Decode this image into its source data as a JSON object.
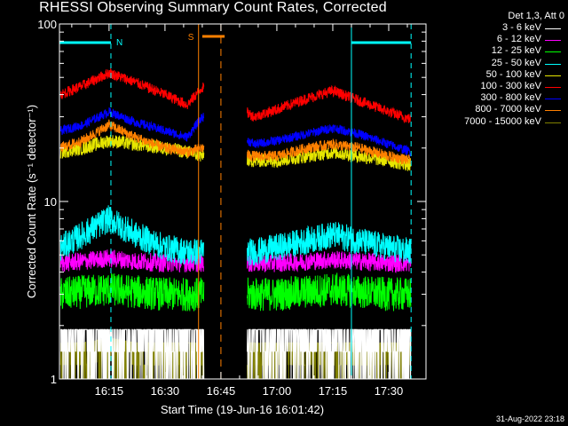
{
  "title": "RHESSI Observing Summary Count Rates, Corrected",
  "timestamp": "31-Aug-2022 23:18",
  "legend": {
    "header": "Det 1,3, Att 0",
    "entries": [
      {
        "label": "3 - 6 keV",
        "color": "#ffffff"
      },
      {
        "label": "6 - 12 keV",
        "color": "#ff00ff"
      },
      {
        "label": "12 - 25 keV",
        "color": "#00ff00"
      },
      {
        "label": "25 - 50 keV",
        "color": "#00ffff"
      },
      {
        "label": "50 - 100 keV",
        "color": "#e6e600"
      },
      {
        "label": "100 - 300 keV",
        "color": "#ff0000"
      },
      {
        "label": "300 - 800 keV",
        "color": "#0000ff"
      },
      {
        "label": "800 - 7000 keV",
        "color": "#ff8000"
      },
      {
        "label": "7000 - 15000 keV",
        "color": "#808000"
      }
    ]
  },
  "chart_data": {
    "type": "line",
    "title": "RHESSI Observing Summary Count Rates, Corrected",
    "xlabel": "Start Time (19-Jun-16 16:01:42)",
    "ylabel": "Corrected Count Rate (s⁻¹ detector⁻¹)",
    "yscale": "log",
    "ylim": [
      1,
      100
    ],
    "xlim": [
      "16:01:42",
      "17:40:00"
    ],
    "x_ticks": [
      "16:15",
      "16:30",
      "16:45",
      "17:00",
      "17:15",
      "17:30"
    ],
    "y_ticks": [
      "1",
      "10",
      "100"
    ],
    "annotations": [
      {
        "text": "N",
        "time": "16:15:30",
        "color": "#00ffff"
      },
      {
        "text": "S",
        "time": "16:39:00",
        "color": "#ff8000"
      }
    ],
    "markers": {
      "night_bars": [
        [
          "16:01:42",
          "16:15:30"
        ],
        [
          "17:20:00",
          "17:36:00"
        ]
      ],
      "saa_bar": [
        "16:40:00",
        "16:46:00"
      ],
      "night_lines": [
        "16:15:30",
        "17:20:00",
        "17:36:00"
      ],
      "saa_lines": [
        "16:39:00",
        "16:45:00"
      ]
    },
    "gaps": [
      [
        "16:40:30",
        "16:52:00"
      ]
    ],
    "x": [
      "16:02",
      "16:08",
      "16:15",
      "16:22",
      "16:30",
      "16:36",
      "16:40",
      "16:54",
      "17:00",
      "17:08",
      "17:15",
      "17:22",
      "17:30",
      "17:36"
    ],
    "series": [
      {
        "name": "3 - 6 keV",
        "values": [
          1.9,
          1.9,
          1.9,
          1.9,
          1.9,
          1.9,
          1.9,
          1.9,
          1.9,
          1.9,
          1.9,
          1.9,
          1.9,
          1.9
        ],
        "color": "#ffffff"
      },
      {
        "name": "6 - 12 keV",
        "values": [
          4.5,
          4.6,
          4.8,
          4.6,
          4.5,
          4.5,
          4.5,
          4.5,
          4.5,
          4.6,
          4.7,
          4.6,
          4.5,
          4.5
        ],
        "color": "#ff00ff"
      },
      {
        "name": "12 - 25 keV",
        "values": [
          3.0,
          3.1,
          3.2,
          3.1,
          3.0,
          3.0,
          3.0,
          3.0,
          3.0,
          3.1,
          3.2,
          3.1,
          3.0,
          3.0
        ],
        "color": "#00ff00"
      },
      {
        "name": "25 - 50 keV",
        "values": [
          5.5,
          6.5,
          8.0,
          6.5,
          5.5,
          5.2,
          5.2,
          5.2,
          5.5,
          6.0,
          6.5,
          6.0,
          5.5,
          5.2
        ],
        "color": "#00ffff"
      },
      {
        "name": "50 - 100 keV",
        "values": [
          19,
          20,
          22,
          21,
          20,
          19,
          18,
          17,
          17,
          18,
          19,
          18,
          17,
          16
        ],
        "color": "#e6e600"
      },
      {
        "name": "100 - 300 keV",
        "values": [
          40,
          45,
          53,
          47,
          40,
          35,
          44,
          30,
          33,
          38,
          42,
          37,
          32,
          29
        ],
        "color": "#ff0000"
      },
      {
        "name": "300 - 800 keV",
        "values": [
          25,
          27,
          32,
          28,
          25,
          23,
          30,
          21,
          22,
          24,
          26,
          24,
          21,
          19
        ],
        "color": "#0000ff"
      },
      {
        "name": "800 - 7000 keV",
        "values": [
          20,
          22,
          27,
          23,
          20,
          19,
          20,
          18,
          18,
          20,
          21,
          20,
          18,
          17
        ],
        "color": "#ff8000"
      },
      {
        "name": "7000 - 15000 keV",
        "values": [
          1.6,
          1.6,
          1.7,
          1.6,
          1.6,
          1.6,
          1.6,
          1.6,
          1.6,
          1.6,
          1.6,
          1.6,
          1.6,
          1.6
        ],
        "color": "#808000"
      }
    ]
  }
}
